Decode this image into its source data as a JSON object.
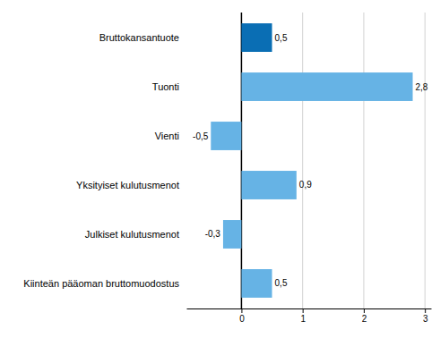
{
  "chart_data": {
    "type": "bar",
    "orientation": "horizontal",
    "categories": [
      "Bruttokansantuote",
      "Tuonti",
      "Vienti",
      "Yksityiset kulutusmenot",
      "Julkiset kulutusmenot",
      "Kiinteän pääoman bruttomuodostus"
    ],
    "values": [
      0.5,
      2.8,
      -0.5,
      0.9,
      -0.3,
      0.5
    ],
    "value_labels": [
      "0,5",
      "2,8",
      "-0,5",
      "0,9",
      "-0,3",
      "0,5"
    ],
    "colors": [
      "#0a6eb4",
      "#66b3e5",
      "#66b3e5",
      "#66b3e5",
      "#66b3e5",
      "#66b3e5"
    ],
    "xlim": [
      -0.9,
      3.1
    ],
    "xticks": [
      0,
      1,
      2,
      3
    ],
    "grid": true,
    "data_labels": true
  }
}
